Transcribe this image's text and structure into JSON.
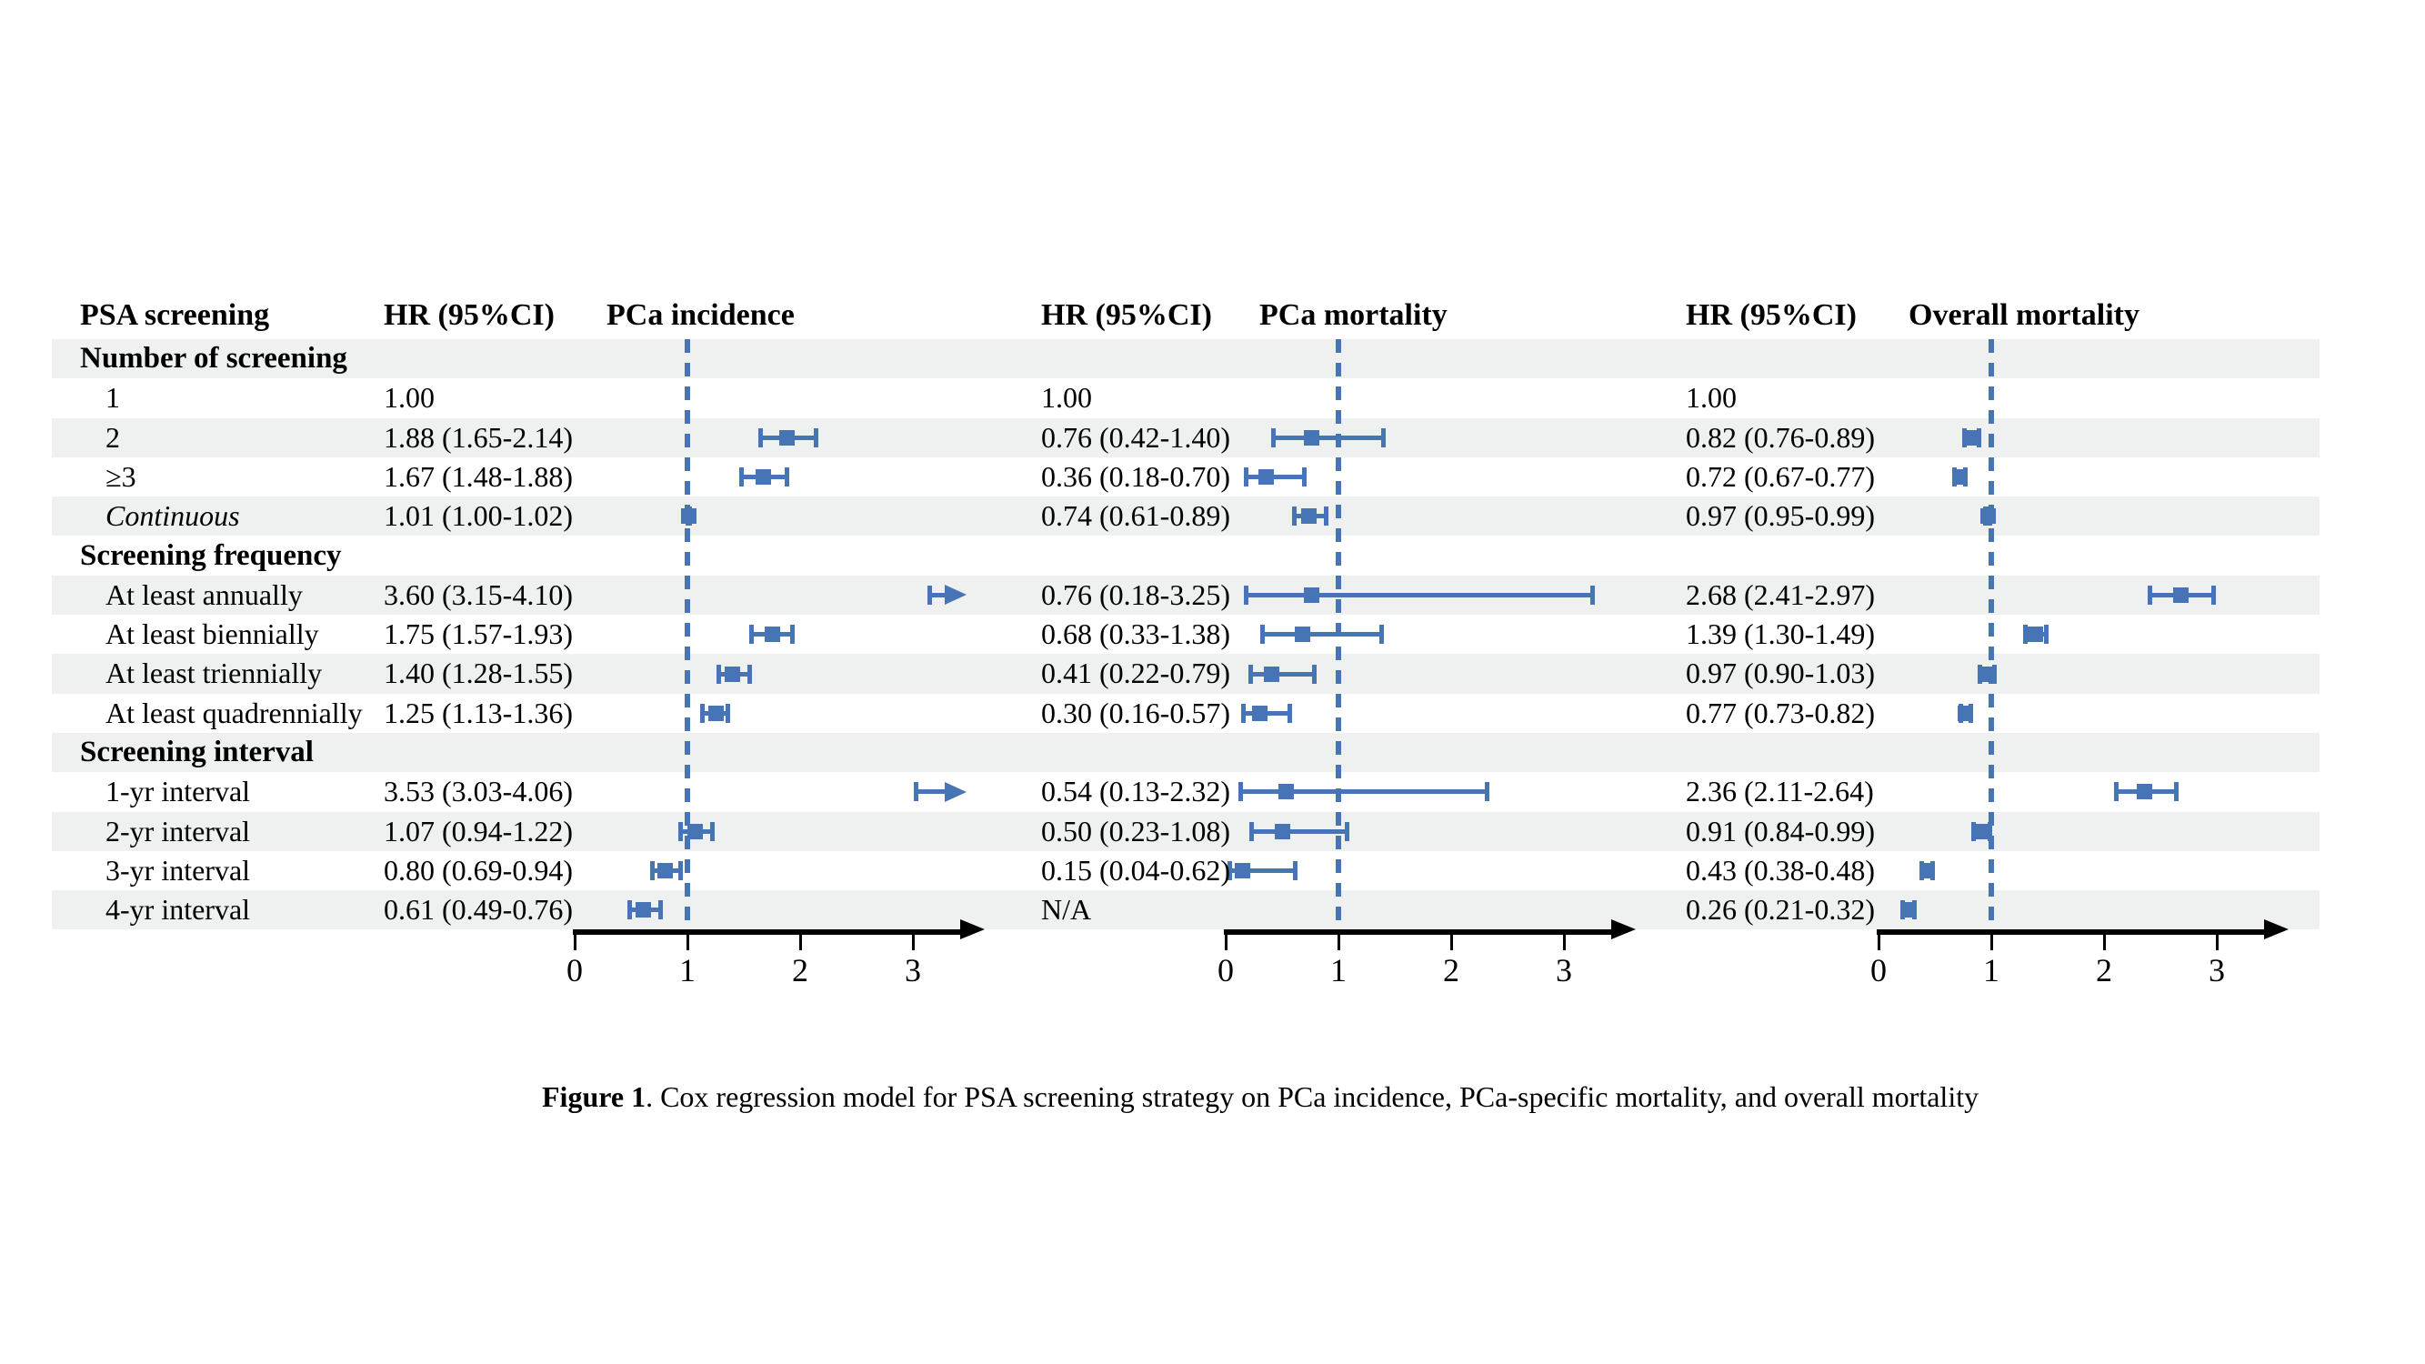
{
  "figure": {
    "caption_label": "Figure 1",
    "caption_text": ". Cox regression model for PSA screening strategy on PCa incidence, PCa-specific mortality, and overall mortality"
  },
  "colors": {
    "accent_blue": "#4674b4",
    "stripe_gray": "#eef1f0",
    "axis_black": "#000000"
  },
  "chart_data": {
    "type": "forest",
    "title": "Cox regression model for PSA screening strategy",
    "header_labels": [
      "PSA screening",
      "HR (95%CI)",
      "PCa incidence",
      "HR (95%CI)",
      "PCa mortality",
      "HR (95%CI)",
      "Overall mortality"
    ],
    "panels": [
      {
        "title": "PCa incidence",
        "hr_header": "HR (95%CI)"
      },
      {
        "title": "PCa mortality",
        "hr_header": "HR (95%CI)"
      },
      {
        "title": "Overall mortality",
        "hr_header": "HR (95%CI)"
      }
    ],
    "axis": {
      "min": 0,
      "max": 3.6,
      "ticks": [
        0,
        1,
        2,
        3
      ],
      "ref_line": 1,
      "arrow": true,
      "grid": false
    },
    "rows": [
      {
        "label": "Number of screening",
        "section": true,
        "italic": false,
        "values": null
      },
      {
        "label": "1",
        "section": false,
        "italic": false,
        "values": [
          {
            "text": "1.00",
            "est": null,
            "lo": null,
            "hi": null,
            "marker": "none"
          },
          {
            "text": "1.00",
            "est": null,
            "lo": null,
            "hi": null,
            "marker": "none"
          },
          {
            "text": "1.00",
            "est": null,
            "lo": null,
            "hi": null,
            "marker": "none"
          }
        ]
      },
      {
        "label": "2",
        "section": false,
        "italic": false,
        "values": [
          {
            "text": "1.88 (1.65-2.14)",
            "est": 1.88,
            "lo": 1.65,
            "hi": 2.14,
            "marker": "box"
          },
          {
            "text": "0.76 (0.42-1.40)",
            "est": 0.76,
            "lo": 0.42,
            "hi": 1.4,
            "marker": "box"
          },
          {
            "text": "0.82 (0.76-0.89)",
            "est": 0.82,
            "lo": 0.76,
            "hi": 0.89,
            "marker": "box"
          }
        ]
      },
      {
        "label": "≥3",
        "section": false,
        "italic": false,
        "values": [
          {
            "text": "1.67 (1.48-1.88)",
            "est": 1.67,
            "lo": 1.48,
            "hi": 1.88,
            "marker": "box"
          },
          {
            "text": "0.36 (0.18-0.70)",
            "est": 0.36,
            "lo": 0.18,
            "hi": 0.7,
            "marker": "box"
          },
          {
            "text": "0.72 (0.67-0.77)",
            "est": 0.72,
            "lo": 0.67,
            "hi": 0.77,
            "marker": "box"
          }
        ]
      },
      {
        "label": "Continuous",
        "section": false,
        "italic": true,
        "values": [
          {
            "text": "1.01 (1.00-1.02)",
            "est": 1.01,
            "lo": 1.0,
            "hi": 1.02,
            "marker": "box"
          },
          {
            "text": "0.74 (0.61-0.89)",
            "est": 0.74,
            "lo": 0.61,
            "hi": 0.89,
            "marker": "box"
          },
          {
            "text": "0.97 (0.95-0.99)",
            "est": 0.97,
            "lo": 0.95,
            "hi": 0.99,
            "marker": "box"
          }
        ]
      },
      {
        "label": "Screening frequency",
        "section": true,
        "italic": false,
        "values": null
      },
      {
        "label": "At least annually",
        "section": false,
        "italic": false,
        "values": [
          {
            "text": "3.60 (3.15-4.10)",
            "est": 3.6,
            "lo": 3.15,
            "hi": 4.1,
            "marker": "arrow"
          },
          {
            "text": "0.76 (0.18-3.25)",
            "est": 0.76,
            "lo": 0.18,
            "hi": 3.25,
            "marker": "box"
          },
          {
            "text": "2.68 (2.41-2.97)",
            "est": 2.68,
            "lo": 2.41,
            "hi": 2.97,
            "marker": "box"
          }
        ]
      },
      {
        "label": "At least biennially",
        "section": false,
        "italic": false,
        "values": [
          {
            "text": "1.75 (1.57-1.93)",
            "est": 1.75,
            "lo": 1.57,
            "hi": 1.93,
            "marker": "box"
          },
          {
            "text": "0.68 (0.33-1.38)",
            "est": 0.68,
            "lo": 0.33,
            "hi": 1.38,
            "marker": "box"
          },
          {
            "text": "1.39 (1.30-1.49)",
            "est": 1.39,
            "lo": 1.3,
            "hi": 1.49,
            "marker": "box"
          }
        ]
      },
      {
        "label": "At least triennially",
        "section": false,
        "italic": false,
        "values": [
          {
            "text": "1.40 (1.28-1.55)",
            "est": 1.4,
            "lo": 1.28,
            "hi": 1.55,
            "marker": "box"
          },
          {
            "text": "0.41 (0.22-0.79)",
            "est": 0.41,
            "lo": 0.22,
            "hi": 0.79,
            "marker": "box"
          },
          {
            "text": "0.97 (0.90-1.03)",
            "est": 0.97,
            "lo": 0.9,
            "hi": 1.03,
            "marker": "box"
          }
        ]
      },
      {
        "label": "At least quadrennially",
        "section": false,
        "italic": false,
        "values": [
          {
            "text": "1.25 (1.13-1.36)",
            "est": 1.25,
            "lo": 1.13,
            "hi": 1.36,
            "marker": "box"
          },
          {
            "text": "0.30 (0.16-0.57)",
            "est": 0.3,
            "lo": 0.16,
            "hi": 0.57,
            "marker": "box"
          },
          {
            "text": "0.77 (0.73-0.82)",
            "est": 0.77,
            "lo": 0.73,
            "hi": 0.82,
            "marker": "box"
          }
        ]
      },
      {
        "label": "Screening interval",
        "section": true,
        "italic": false,
        "values": null
      },
      {
        "label": "1-yr interval",
        "section": false,
        "italic": false,
        "values": [
          {
            "text": "3.53 (3.03-4.06)",
            "est": 3.53,
            "lo": 3.03,
            "hi": 4.06,
            "marker": "arrow"
          },
          {
            "text": "0.54 (0.13-2.32)",
            "est": 0.54,
            "lo": 0.13,
            "hi": 2.32,
            "marker": "box"
          },
          {
            "text": "2.36 (2.11-2.64)",
            "est": 2.36,
            "lo": 2.11,
            "hi": 2.64,
            "marker": "box"
          }
        ]
      },
      {
        "label": "2-yr interval",
        "section": false,
        "italic": false,
        "values": [
          {
            "text": "1.07 (0.94-1.22)",
            "est": 1.07,
            "lo": 0.94,
            "hi": 1.22,
            "marker": "box"
          },
          {
            "text": "0.50 (0.23-1.08)",
            "est": 0.5,
            "lo": 0.23,
            "hi": 1.08,
            "marker": "box"
          },
          {
            "text": "0.91 (0.84-0.99)",
            "est": 0.91,
            "lo": 0.84,
            "hi": 0.99,
            "marker": "box"
          }
        ]
      },
      {
        "label": "3-yr interval",
        "section": false,
        "italic": false,
        "values": [
          {
            "text": "0.80 (0.69-0.94)",
            "est": 0.8,
            "lo": 0.69,
            "hi": 0.94,
            "marker": "box"
          },
          {
            "text": "0.15 (0.04-0.62)",
            "est": 0.15,
            "lo": 0.04,
            "hi": 0.62,
            "marker": "box"
          },
          {
            "text": "0.43 (0.38-0.48)",
            "est": 0.43,
            "lo": 0.38,
            "hi": 0.48,
            "marker": "box"
          }
        ]
      },
      {
        "label": "4-yr interval",
        "section": false,
        "italic": false,
        "values": [
          {
            "text": "0.61 (0.49-0.76)",
            "est": 0.61,
            "lo": 0.49,
            "hi": 0.76,
            "marker": "box"
          },
          {
            "text": "N/A",
            "est": null,
            "lo": null,
            "hi": null,
            "marker": "none"
          },
          {
            "text": "0.26 (0.21-0.32)",
            "est": 0.26,
            "lo": 0.21,
            "hi": 0.32,
            "marker": "box"
          }
        ]
      }
    ]
  }
}
